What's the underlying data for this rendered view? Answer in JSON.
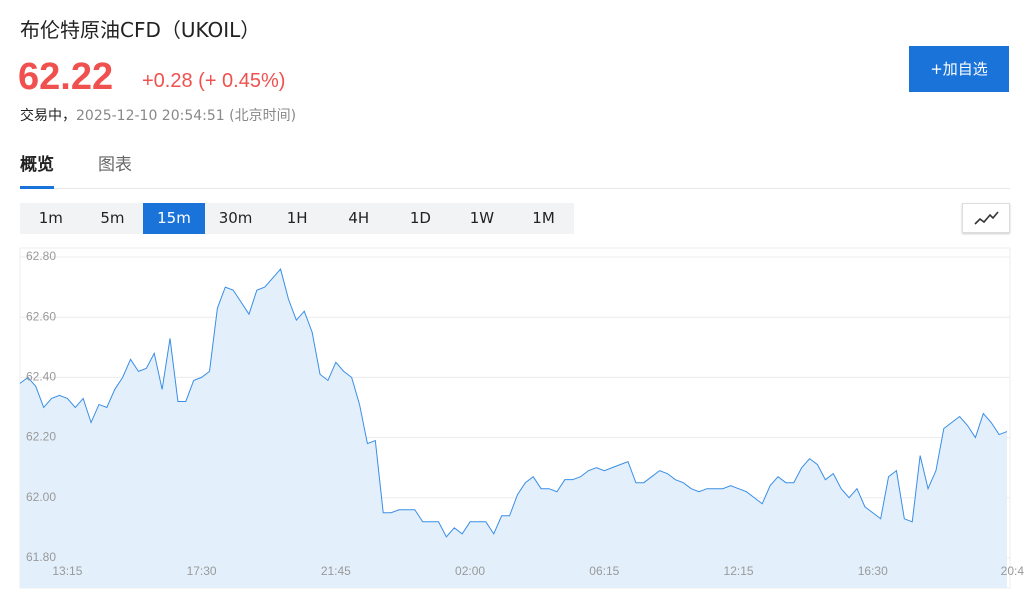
{
  "header": {
    "title": "布伦特原油CFD（UKOIL）",
    "price": "62.22",
    "change": "+0.28 (+ 0.45%)",
    "status": "交易中，",
    "timestamp": "2025-12-10 20:54:51 (北京时间)",
    "watch_button": "+加自选"
  },
  "tabs": [
    "概览",
    "图表"
  ],
  "active_tab": 0,
  "intervals": [
    "1m",
    "5m",
    "15m",
    "30m",
    "1H",
    "4H",
    "1D",
    "1W",
    "1M"
  ],
  "active_interval": 2,
  "chart_data": {
    "type": "area",
    "color": "#3a8ee6",
    "fill": "#e3f0fc",
    "grid": true,
    "ylim": [
      61.7,
      62.83
    ],
    "yticks": [
      {
        "value": 61.8,
        "label": "61.80"
      },
      {
        "value": 62.0,
        "label": "62.00"
      },
      {
        "value": 62.2,
        "label": "62.20"
      },
      {
        "value": 62.4,
        "label": "62.40"
      },
      {
        "value": 62.6,
        "label": "62.60"
      },
      {
        "value": 62.8,
        "label": "62.80"
      }
    ],
    "categories": [
      null,
      null,
      null,
      null,
      null,
      null,
      "13:15",
      null,
      null,
      null,
      null,
      null,
      null,
      null,
      null,
      null,
      null,
      null,
      null,
      null,
      null,
      null,
      null,
      "17:30",
      null,
      null,
      null,
      null,
      null,
      null,
      null,
      null,
      null,
      null,
      null,
      null,
      null,
      null,
      null,
      null,
      "21:45",
      null,
      null,
      null,
      null,
      null,
      null,
      null,
      null,
      null,
      null,
      null,
      null,
      null,
      null,
      null,
      null,
      "02:00",
      null,
      null,
      null,
      null,
      null,
      null,
      null,
      null,
      null,
      null,
      null,
      null,
      null,
      null,
      null,
      null,
      "06:15",
      null,
      null,
      null,
      null,
      null,
      null,
      null,
      null,
      null,
      null,
      null,
      null,
      null,
      null,
      null,
      null,
      "12:15",
      null,
      null,
      null,
      null,
      null,
      null,
      null,
      null,
      null,
      null,
      null,
      null,
      null,
      null,
      null,
      null,
      "16:30",
      null,
      null,
      null,
      null,
      null,
      null,
      null,
      null,
      null,
      null,
      null,
      null,
      null,
      null,
      null,
      null,
      "20:4"
    ],
    "values": [
      62.38,
      62.4,
      62.37,
      62.3,
      62.33,
      62.34,
      62.33,
      62.3,
      62.33,
      62.25,
      62.31,
      62.3,
      62.36,
      62.4,
      62.46,
      62.42,
      62.43,
      62.48,
      62.36,
      62.53,
      62.32,
      62.32,
      62.39,
      62.4,
      62.42,
      62.63,
      62.7,
      62.69,
      62.65,
      62.61,
      62.69,
      62.7,
      62.73,
      62.76,
      62.66,
      62.59,
      62.62,
      62.55,
      62.41,
      62.39,
      62.45,
      62.42,
      62.4,
      62.31,
      62.18,
      62.19,
      61.95,
      61.95,
      61.96,
      61.96,
      61.96,
      61.92,
      61.92,
      61.92,
      61.87,
      61.9,
      61.88,
      61.92,
      61.92,
      61.92,
      61.88,
      61.94,
      61.94,
      62.01,
      62.05,
      62.07,
      62.03,
      62.03,
      62.02,
      62.06,
      62.06,
      62.07,
      62.09,
      62.1,
      62.09,
      62.1,
      62.11,
      62.12,
      62.05,
      62.05,
      62.07,
      62.09,
      62.08,
      62.06,
      62.05,
      62.03,
      62.02,
      62.03,
      62.03,
      62.03,
      62.04,
      62.03,
      62.02,
      62.0,
      61.98,
      62.04,
      62.07,
      62.05,
      62.05,
      62.1,
      62.13,
      62.11,
      62.06,
      62.08,
      62.03,
      62.0,
      62.03,
      61.97,
      61.95,
      61.93,
      62.07,
      62.09,
      61.93,
      61.92,
      62.14,
      62.03,
      62.09,
      62.23,
      62.25,
      62.27,
      62.24,
      62.2,
      62.28,
      62.25,
      62.21,
      62.22
    ]
  }
}
